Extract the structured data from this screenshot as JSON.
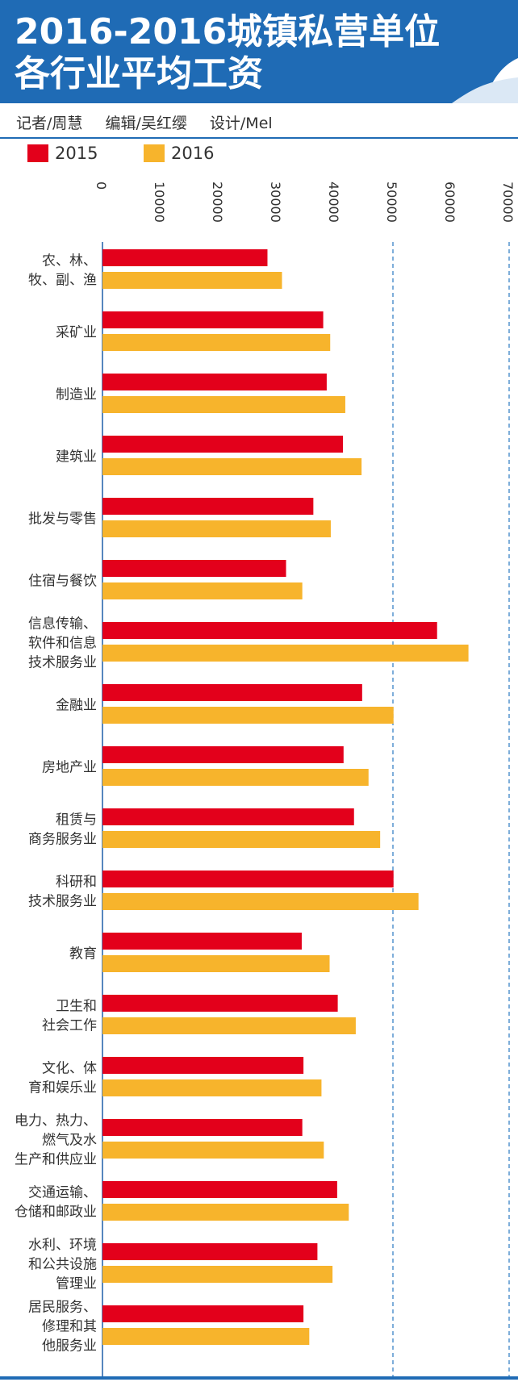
{
  "header": {
    "title_line1": "2016-2016城镇私营单位",
    "title_line2": "各行业平均工资",
    "credits": [
      "记者/周慧",
      "编辑/吴红缨",
      "设计/Mel"
    ]
  },
  "colors": {
    "s2015": "#e3001b",
    "s2016": "#f7b42c",
    "header_bg": "#1f6bb5",
    "grid": "#2a78c2"
  },
  "chart_data": {
    "type": "bar",
    "orientation": "horizontal",
    "title": "2016-2016城镇私营单位各行业平均工资",
    "legend": [
      {
        "name": "2015",
        "color": "#e3001b"
      },
      {
        "name": "2016",
        "color": "#f7b42c"
      }
    ],
    "x_ticks": [
      "0",
      "10000",
      "20000",
      "30000",
      "40000",
      "50000",
      "60000",
      "70000"
    ],
    "xlim": [
      0,
      70000
    ],
    "dashed_gridlines_at": [
      50000,
      70000
    ],
    "categories": [
      [
        "农、林、",
        "牧、副、渔"
      ],
      [
        "采矿业"
      ],
      [
        "制造业"
      ],
      [
        "建筑业"
      ],
      [
        "批发与零售"
      ],
      [
        "住宿与餐饮"
      ],
      [
        "信息传输、",
        "软件和信息",
        "技术服务业"
      ],
      [
        "金融业"
      ],
      [
        "房地产业"
      ],
      [
        "租赁与",
        "商务服务业"
      ],
      [
        "科研和",
        "技术服务业"
      ],
      [
        "教育"
      ],
      [
        "卫生和",
        "社会工作"
      ],
      [
        "文化、体",
        "育和娱乐业"
      ],
      [
        "电力、热力、",
        "燃气及水",
        "生产和供应业"
      ],
      [
        "交通运输、",
        "仓储和邮政业"
      ],
      [
        "水利、环境",
        "和公共设施",
        "管理业"
      ],
      [
        "居民服务、",
        "修理和其",
        "他服务业"
      ]
    ],
    "series": [
      {
        "name": "2015",
        "values": [
          28400,
          38000,
          38600,
          41400,
          36300,
          31600,
          57600,
          44700,
          41500,
          43300,
          50100,
          34300,
          40500,
          34600,
          34400,
          40400,
          37000,
          34600
        ]
      },
      {
        "name": "2016",
        "values": [
          30900,
          39200,
          41800,
          44600,
          39300,
          34400,
          63000,
          50100,
          45800,
          47800,
          54400,
          39100,
          43600,
          37700,
          38100,
          42400,
          39600,
          35600
        ]
      }
    ]
  }
}
